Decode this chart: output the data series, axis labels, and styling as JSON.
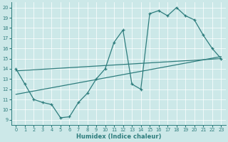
{
  "xlabel": "Humidex (Indice chaleur)",
  "xlim": [
    -0.5,
    23.5
  ],
  "ylim": [
    8.5,
    20.5
  ],
  "yticks": [
    9,
    10,
    11,
    12,
    13,
    14,
    15,
    16,
    17,
    18,
    19,
    20
  ],
  "xticks": [
    0,
    1,
    2,
    3,
    4,
    5,
    6,
    7,
    8,
    9,
    10,
    11,
    12,
    13,
    14,
    15,
    16,
    17,
    18,
    19,
    20,
    21,
    22,
    23
  ],
  "bg_color": "#cce8e8",
  "line_color": "#2e7d7d",
  "line1_x": [
    0,
    1,
    2,
    3,
    4,
    5,
    6,
    7,
    8,
    9,
    10,
    11,
    12,
    13,
    14,
    15,
    16,
    17,
    18,
    19,
    20,
    21,
    22,
    23
  ],
  "line1_y": [
    14,
    12.5,
    11,
    10.7,
    10.5,
    9.2,
    9.3,
    10.7,
    11.6,
    13.0,
    14.0,
    16.6,
    17.8,
    12.5,
    12.0,
    19.4,
    19.7,
    19.2,
    20.0,
    19.2,
    18.8,
    17.3,
    16.0,
    15.0
  ],
  "line2_x": [
    0,
    23
  ],
  "line2_y": [
    13.8,
    15.0
  ],
  "line3_x": [
    0,
    23
  ],
  "line3_y": [
    11.5,
    15.2
  ]
}
